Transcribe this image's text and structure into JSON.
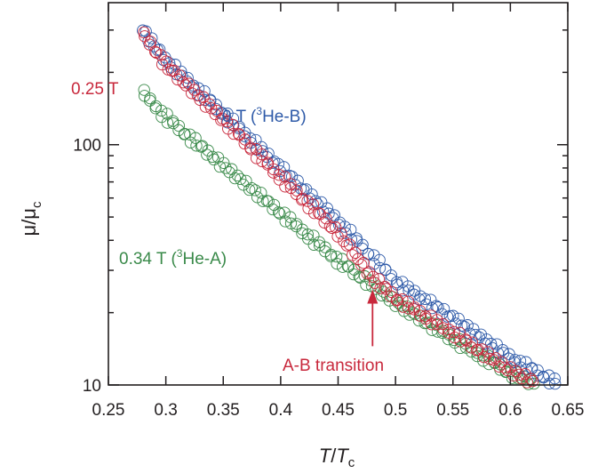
{
  "chart_data": {
    "type": "scatter",
    "x_axis": {
      "label_italic": "T",
      "label_separator": "/",
      "label_italic_2": "T",
      "label_subscript": "c",
      "range": [
        0.25,
        0.65
      ],
      "ticks": [
        0.25,
        0.3,
        0.35,
        0.4,
        0.45,
        0.5,
        0.55,
        0.6,
        0.65
      ],
      "tick_labels": [
        "0.25",
        "0.3",
        "0.35",
        "0.4",
        "0.45",
        "0.5",
        "0.55",
        "0.6",
        "0.65"
      ]
    },
    "y_axis": {
      "label_main": "μ/μ",
      "label_subscript": "c",
      "scale": "log",
      "range": [
        10,
        390
      ],
      "major_ticks": [
        10,
        100
      ],
      "tick_labels": [
        "10",
        "100"
      ],
      "minor_ticks": [
        20,
        30,
        40,
        50,
        60,
        70,
        80,
        90,
        200,
        300
      ]
    },
    "marker": "open-circle",
    "series": [
      {
        "name_prefix": "0 T (",
        "name_sup": "3",
        "name_suffix": "He-B)",
        "color": "#2e5aa8",
        "points": [
          [
            0.28,
            300
          ],
          [
            0.3,
            225
          ],
          [
            0.35,
            135
          ],
          [
            0.4,
            80
          ],
          [
            0.45,
            48
          ],
          [
            0.5,
            27
          ],
          [
            0.55,
            19
          ],
          [
            0.6,
            13
          ],
          [
            0.64,
            10.2
          ]
        ]
      },
      {
        "name": "0.25 T",
        "color": "#c8283c",
        "points": [
          [
            0.28,
            290
          ],
          [
            0.3,
            215
          ],
          [
            0.35,
            127
          ],
          [
            0.4,
            73
          ],
          [
            0.45,
            43
          ],
          [
            0.48,
            28
          ],
          [
            0.5,
            23
          ],
          [
            0.55,
            16.5
          ],
          [
            0.6,
            11.5
          ],
          [
            0.62,
            10.3
          ]
        ]
      },
      {
        "name_prefix": "0.34 T (",
        "name_sup": "3",
        "name_suffix": "He-A)",
        "color": "#3a8a4a",
        "points": [
          [
            0.28,
            165
          ],
          [
            0.3,
            130
          ],
          [
            0.35,
            82
          ],
          [
            0.4,
            52
          ],
          [
            0.45,
            33
          ],
          [
            0.48,
            26
          ],
          [
            0.5,
            22
          ],
          [
            0.55,
            15.5
          ],
          [
            0.6,
            11.2
          ],
          [
            0.62,
            10.2
          ]
        ]
      }
    ],
    "annotation": {
      "text": "A-B transition",
      "color": "#c8283c",
      "x": 0.48,
      "y_from": 14.5,
      "y_to": 25
    }
  }
}
